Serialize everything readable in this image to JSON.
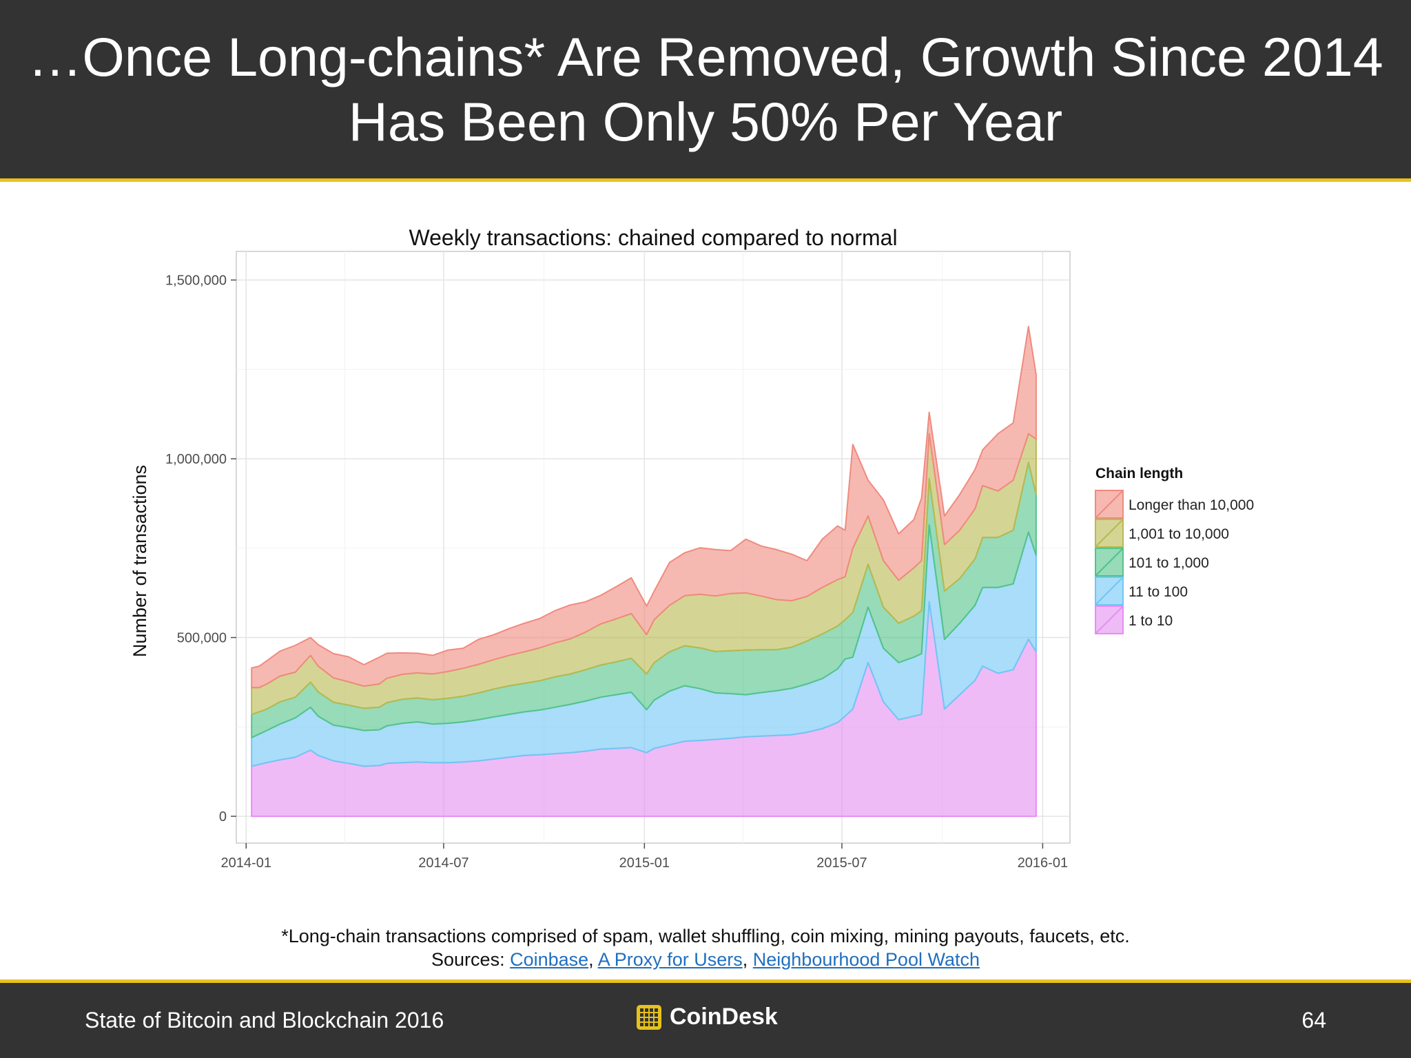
{
  "slide": {
    "title_line1": "…Once Long-chains* Are Removed, Growth Since 2014",
    "title_line2": "Has Been Only 50% Per Year",
    "footnote": "*Long-chain transactions comprised of spam, wallet shuffling, coin mixing, mining payouts, faucets, etc.",
    "sources_label": "Sources:",
    "sources": [
      "Coinbase",
      "A Proxy for Users",
      "Neighbourhood Pool Watch"
    ],
    "footer_left": "State of Bitcoin and Blockchain 2016",
    "brand": "CoinDesk",
    "page_number": "64"
  },
  "colors": {
    "header_bg": "#333333",
    "accent": "#e8c21c",
    "link": "#1f6fbf"
  },
  "chart_data": {
    "type": "area",
    "stacked": true,
    "title": "Weekly transactions: chained compared to normal",
    "ylabel": "Number of transactions",
    "xlabel": "",
    "x_ticks": [
      "2014-01",
      "2014-07",
      "2015-01",
      "2015-07",
      "2016-01"
    ],
    "y_ticks": [
      0,
      500000,
      1000000,
      1500000
    ],
    "y_tick_labels": [
      "0",
      "500,000",
      "1,000,000",
      "1,500,000"
    ],
    "ylim": [
      -75000,
      1580000
    ],
    "xlim": [
      "2013-12-23",
      "2016-01-26"
    ],
    "grid": true,
    "legend_title": "Chain length",
    "legend_position": "right",
    "x": [
      "2014-01-06",
      "2014-01-13",
      "2014-01-20",
      "2014-02-01",
      "2014-02-15",
      "2014-03-01",
      "2014-03-08",
      "2014-03-22",
      "2014-04-05",
      "2014-04-19",
      "2014-05-03",
      "2014-05-10",
      "2014-05-24",
      "2014-06-07",
      "2014-06-21",
      "2014-07-05",
      "2014-07-19",
      "2014-08-02",
      "2014-08-16",
      "2014-08-30",
      "2014-09-13",
      "2014-09-27",
      "2014-10-11",
      "2014-10-25",
      "2014-11-08",
      "2014-11-22",
      "2014-12-06",
      "2014-12-20",
      "2015-01-03",
      "2015-01-10",
      "2015-01-24",
      "2015-02-07",
      "2015-02-21",
      "2015-03-07",
      "2015-03-21",
      "2015-04-04",
      "2015-04-18",
      "2015-05-02",
      "2015-05-16",
      "2015-05-30",
      "2015-06-13",
      "2015-06-27",
      "2015-07-04",
      "2015-07-11",
      "2015-07-25",
      "2015-08-08",
      "2015-08-22",
      "2015-09-05",
      "2015-09-12",
      "2015-09-19",
      "2015-10-03",
      "2015-10-17",
      "2015-10-31",
      "2015-11-07",
      "2015-11-21",
      "2015-12-05",
      "2015-12-19",
      "2015-12-26"
    ],
    "series": [
      {
        "name": "1 to 10",
        "color": "#e58ef2",
        "values": [
          140000,
          145000,
          150000,
          158000,
          165000,
          185000,
          170000,
          155000,
          148000,
          140000,
          142000,
          148000,
          150000,
          152000,
          150000,
          150000,
          152000,
          155000,
          160000,
          165000,
          170000,
          172000,
          175000,
          178000,
          182000,
          188000,
          190000,
          192000,
          178000,
          190000,
          200000,
          210000,
          212000,
          215000,
          218000,
          222000,
          224000,
          226000,
          228000,
          235000,
          245000,
          262000,
          280000,
          300000,
          430000,
          320000,
          270000,
          280000,
          285000,
          600000,
          300000,
          340000,
          380000,
          420000,
          400000,
          410000,
          495000,
          460000
        ]
      },
      {
        "name": "11 to 100",
        "color": "#6fc7f5",
        "values": [
          80000,
          85000,
          90000,
          100000,
          110000,
          120000,
          110000,
          100000,
          100000,
          100000,
          100000,
          105000,
          110000,
          112000,
          108000,
          110000,
          112000,
          115000,
          118000,
          120000,
          122000,
          125000,
          130000,
          135000,
          140000,
          145000,
          150000,
          155000,
          120000,
          135000,
          150000,
          155000,
          145000,
          130000,
          125000,
          118000,
          122000,
          125000,
          130000,
          135000,
          140000,
          150000,
          160000,
          145000,
          155000,
          150000,
          160000,
          165000,
          170000,
          215000,
          195000,
          200000,
          210000,
          220000,
          240000,
          240000,
          300000,
          270000
        ]
      },
      {
        "name": "101 to 1,000",
        "color": "#52c38a",
        "values": [
          65000,
          62000,
          60000,
          62000,
          58000,
          70000,
          68000,
          64000,
          63000,
          62000,
          63000,
          65000,
          67000,
          67000,
          68000,
          70000,
          72000,
          75000,
          78000,
          80000,
          80000,
          82000,
          85000,
          85000,
          88000,
          90000,
          92000,
          95000,
          100000,
          105000,
          110000,
          112000,
          114000,
          116000,
          120000,
          125000,
          120000,
          115000,
          115000,
          120000,
          125000,
          120000,
          110000,
          125000,
          120000,
          115000,
          110000,
          115000,
          120000,
          130000,
          135000,
          125000,
          130000,
          140000,
          140000,
          150000,
          195000,
          170000
        ]
      },
      {
        "name": "1,001 to 10,000",
        "color": "#b8b94e",
        "values": [
          75000,
          68000,
          70000,
          72000,
          70000,
          75000,
          72000,
          68000,
          65000,
          62000,
          65000,
          68000,
          70000,
          70000,
          72000,
          75000,
          78000,
          80000,
          82000,
          85000,
          88000,
          92000,
          95000,
          98000,
          105000,
          115000,
          120000,
          125000,
          110000,
          120000,
          130000,
          140000,
          150000,
          155000,
          160000,
          160000,
          150000,
          140000,
          130000,
          125000,
          130000,
          130000,
          120000,
          180000,
          135000,
          130000,
          120000,
          135000,
          140000,
          125000,
          130000,
          135000,
          140000,
          145000,
          130000,
          140000,
          80000,
          155000
        ]
      },
      {
        "name": "Longer than 10,000",
        "color": "#f08a7e",
        "values": [
          55000,
          60000,
          65000,
          70000,
          75000,
          50000,
          60000,
          68000,
          70000,
          60000,
          75000,
          70000,
          60000,
          55000,
          52000,
          60000,
          56000,
          70000,
          70000,
          75000,
          80000,
          82000,
          90000,
          95000,
          85000,
          80000,
          90000,
          100000,
          80000,
          80000,
          120000,
          120000,
          130000,
          130000,
          120000,
          150000,
          140000,
          140000,
          130000,
          100000,
          135000,
          150000,
          130000,
          290000,
          100000,
          170000,
          130000,
          135000,
          175000,
          60000,
          80000,
          100000,
          110000,
          100000,
          160000,
          160000,
          300000,
          180000
        ]
      }
    ]
  }
}
